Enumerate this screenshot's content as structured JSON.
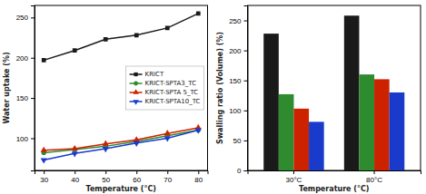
{
  "chart_data": [
    {
      "type": "line",
      "xlabel": "Temperature (°C)",
      "ylabel": "Water uptake (%)",
      "x": [
        30,
        40,
        50,
        60,
        70,
        80
      ],
      "series": [
        {
          "name": "KRICT",
          "color": "#1a1a1a",
          "marker": "square",
          "line_style": "solid",
          "values": [
            197,
            209,
            223,
            228,
            237,
            255
          ]
        },
        {
          "name": "KRICT-SPTA3_TC",
          "color": "#2e8b2e",
          "marker": "circle",
          "line_style": "solid",
          "values": [
            82,
            86,
            90,
            96,
            103,
            110
          ]
        },
        {
          "name": "KRICT-SPTA 5_TC",
          "color": "#cc2200",
          "marker": "triangle-up",
          "line_style": "solid",
          "values": [
            85,
            87,
            93,
            98,
            106,
            113
          ]
        },
        {
          "name": "KRICT-SPTA10_TC",
          "color": "#1a3acc",
          "marker": "triangle-down",
          "line_style": "solid",
          "values": [
            73,
            81,
            87,
            94,
            100,
            110
          ]
        }
      ],
      "xlim": [
        27,
        83
      ],
      "xticks": [
        30,
        40,
        50,
        60,
        70,
        80
      ],
      "ylim": [
        60,
        265
      ],
      "yticks": [
        100,
        150,
        200,
        250
      ],
      "grid": false,
      "legend": "right"
    },
    {
      "type": "bar",
      "xlabel": "Temperature (°C)",
      "ylabel": "Swalling ratio (Volume) (%)",
      "categories": [
        "30°C",
        "80°C"
      ],
      "series": [
        {
          "color": "#1a1a1a",
          "values": [
            228,
            258
          ]
        },
        {
          "color": "#2e8b2e",
          "values": [
            127,
            160
          ]
        },
        {
          "color": "#cc2200",
          "values": [
            103,
            152
          ]
        },
        {
          "color": "#1a3acc",
          "values": [
            81,
            130
          ]
        }
      ],
      "ylim": [
        0,
        275
      ],
      "yticks": [
        0,
        50,
        100,
        150,
        200,
        250
      ],
      "grid": false
    }
  ]
}
